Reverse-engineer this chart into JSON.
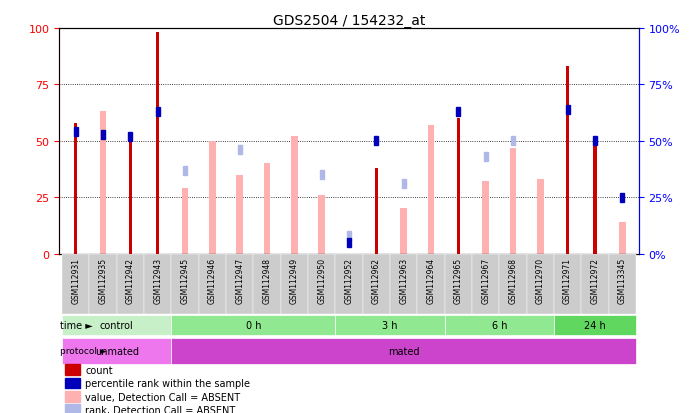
{
  "title": "GDS2504 / 154232_at",
  "samples": [
    "GSM112931",
    "GSM112935",
    "GSM112942",
    "GSM112943",
    "GSM112945",
    "GSM112946",
    "GSM112947",
    "GSM112948",
    "GSM112949",
    "GSM112950",
    "GSM112952",
    "GSM112962",
    "GSM112963",
    "GSM112964",
    "GSM112965",
    "GSM112967",
    "GSM112968",
    "GSM112970",
    "GSM112971",
    "GSM112972",
    "GSM113345"
  ],
  "count": [
    58,
    0,
    51,
    98,
    0,
    0,
    0,
    0,
    0,
    0,
    0,
    38,
    0,
    0,
    60,
    0,
    0,
    0,
    83,
    51,
    0
  ],
  "percentile_rank": [
    54,
    53,
    52,
    63,
    null,
    null,
    null,
    null,
    null,
    null,
    5,
    50,
    null,
    null,
    63,
    null,
    null,
    null,
    64,
    50,
    25
  ],
  "value_absent": [
    null,
    63,
    null,
    null,
    29,
    50,
    35,
    40,
    52,
    26,
    null,
    null,
    20,
    57,
    null,
    32,
    47,
    33,
    null,
    null,
    14
  ],
  "rank_absent": [
    null,
    null,
    null,
    null,
    37,
    null,
    46,
    null,
    null,
    35,
    8,
    null,
    31,
    null,
    null,
    43,
    50,
    null,
    null,
    null,
    null
  ],
  "time_groups": [
    {
      "label": "control",
      "start": 0,
      "end": 4,
      "color": "#c8f0c8"
    },
    {
      "label": "0 h",
      "start": 4,
      "end": 10,
      "color": "#90e890"
    },
    {
      "label": "3 h",
      "start": 10,
      "end": 14,
      "color": "#90e890"
    },
    {
      "label": "6 h",
      "start": 14,
      "end": 18,
      "color": "#90e890"
    },
    {
      "label": "24 h",
      "start": 18,
      "end": 21,
      "color": "#60d860"
    }
  ],
  "protocol_groups": [
    {
      "label": "unmated",
      "start": 0,
      "end": 4,
      "color": "#ee77ee"
    },
    {
      "label": "mated",
      "start": 4,
      "end": 21,
      "color": "#cc44cc"
    }
  ],
  "count_color": "#cc0000",
  "percentile_color": "#0000bb",
  "value_absent_color": "#ffb0b0",
  "rank_absent_color": "#b0b8e8",
  "ylim": [
    0,
    100
  ],
  "title_fontsize": 10,
  "tick_fontsize": 6,
  "grid_values": [
    25,
    50,
    75
  ]
}
